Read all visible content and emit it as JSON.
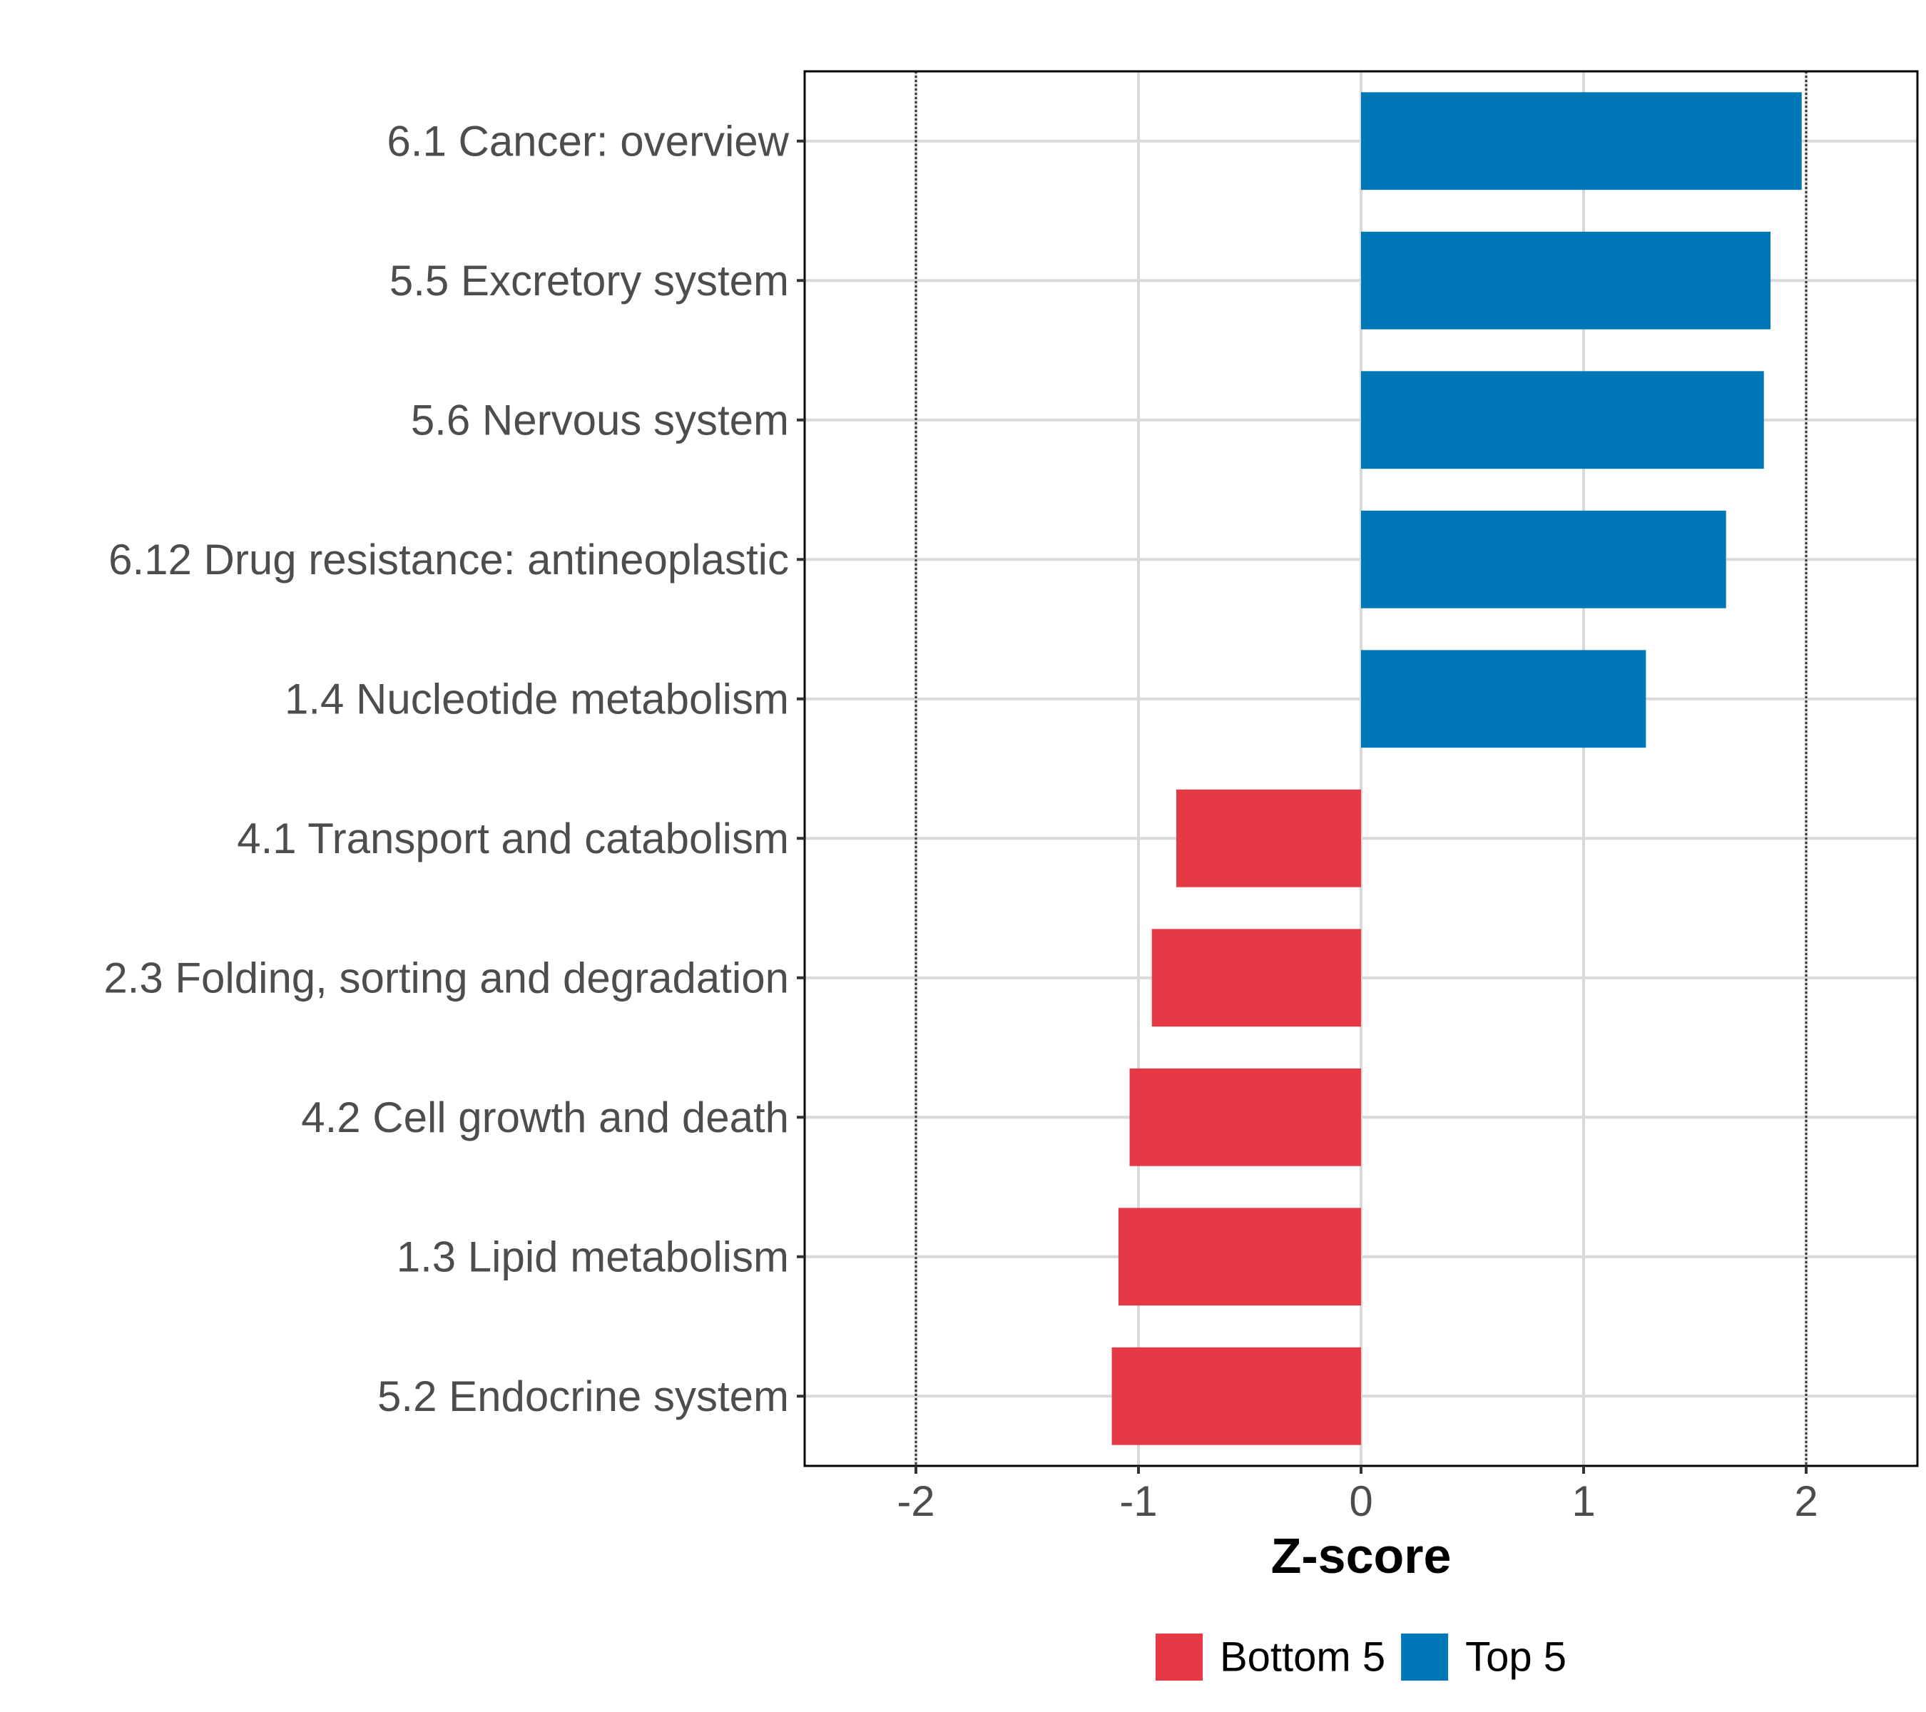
{
  "chart_data": {
    "type": "bar",
    "orientation": "horizontal",
    "title": "",
    "xlabel": "Z-score",
    "ylabel": "",
    "xlim": [
      -2.5,
      2.5
    ],
    "xticks": [
      -2,
      -1,
      0,
      1,
      2
    ],
    "xtick_labels": [
      "-2",
      "-1",
      "0",
      "1",
      "2"
    ],
    "reference_lines": [
      -2,
      2
    ],
    "grid": true,
    "categories": [
      "6.1 Cancer: overview",
      "5.5 Excretory system",
      "5.6 Nervous system",
      "6.12 Drug resistance: antineoplastic",
      "1.4 Nucleotide metabolism",
      "4.1 Transport and catabolism",
      "2.3 Folding, sorting and degradation",
      "4.2 Cell growth and death",
      "1.3 Lipid metabolism",
      "5.2 Endocrine system"
    ],
    "values": [
      1.98,
      1.84,
      1.81,
      1.64,
      1.28,
      -0.83,
      -0.94,
      -1.04,
      -1.09,
      -1.12
    ],
    "groups": [
      "Top 5",
      "Top 5",
      "Top 5",
      "Top 5",
      "Top 5",
      "Bottom 5",
      "Bottom 5",
      "Bottom 5",
      "Bottom 5",
      "Bottom 5"
    ],
    "legend": {
      "position": "bottom",
      "entries": [
        {
          "name": "Bottom 5",
          "color": "#e63946"
        },
        {
          "name": "Top 5",
          "color": "#0077b6"
        }
      ]
    }
  }
}
